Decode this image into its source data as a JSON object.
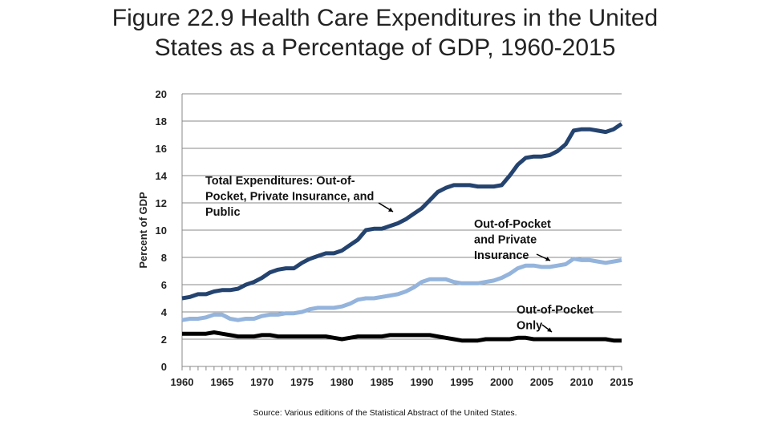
{
  "title_line1": "Figure 22.9 Health Care Expenditures in the United",
  "title_line2": "States as a Percentage of GDP, 1960-2015",
  "source": "Source: Various editions of the Statistical Abstract of the United States.",
  "chart_data": {
    "type": "line",
    "title": "Figure 22.9 Health Care Expenditures in the United States as a Percentage of GDP, 1960-2015",
    "xlabel": "",
    "ylabel": "Percent of GDP",
    "xlim": [
      1960,
      2015
    ],
    "ylim": [
      0,
      20
    ],
    "xticks": [
      1960,
      1965,
      1970,
      1975,
      1980,
      1985,
      1990,
      1995,
      2000,
      2005,
      2010,
      2015
    ],
    "yticks": [
      0,
      2,
      4,
      6,
      8,
      10,
      12,
      14,
      16,
      18,
      20
    ],
    "grid": "horizontal",
    "x": [
      1960,
      1961,
      1962,
      1963,
      1964,
      1965,
      1966,
      1967,
      1968,
      1969,
      1970,
      1971,
      1972,
      1973,
      1974,
      1975,
      1976,
      1977,
      1978,
      1979,
      1980,
      1981,
      1982,
      1983,
      1984,
      1985,
      1986,
      1987,
      1988,
      1989,
      1990,
      1991,
      1992,
      1993,
      1994,
      1995,
      1996,
      1997,
      1998,
      1999,
      2000,
      2001,
      2002,
      2003,
      2004,
      2005,
      2006,
      2007,
      2008,
      2009,
      2010,
      2011,
      2012,
      2013,
      2014,
      2015
    ],
    "series": [
      {
        "name": "Total Expenditures: Out-of-Pocket, Private Insurance, and Public",
        "color": "#24436f",
        "values": [
          5.0,
          5.1,
          5.3,
          5.3,
          5.5,
          5.6,
          5.6,
          5.7,
          6.0,
          6.2,
          6.5,
          6.9,
          7.1,
          7.2,
          7.2,
          7.6,
          7.9,
          8.1,
          8.3,
          8.3,
          8.5,
          8.9,
          9.3,
          10.0,
          10.1,
          10.1,
          10.3,
          10.5,
          10.8,
          11.2,
          11.6,
          12.2,
          12.8,
          13.1,
          13.3,
          13.3,
          13.3,
          13.2,
          13.2,
          13.2,
          13.3,
          14.0,
          14.8,
          15.3,
          15.4,
          15.4,
          15.5,
          15.8,
          16.3,
          17.3,
          17.4,
          17.4,
          17.3,
          17.2,
          17.4,
          17.8
        ]
      },
      {
        "name": "Out-of-Pocket and Private Insurance",
        "color": "#94b4dc",
        "values": [
          3.4,
          3.5,
          3.5,
          3.6,
          3.8,
          3.8,
          3.5,
          3.4,
          3.5,
          3.5,
          3.7,
          3.8,
          3.8,
          3.9,
          3.9,
          4.0,
          4.2,
          4.3,
          4.3,
          4.3,
          4.4,
          4.6,
          4.9,
          5.0,
          5.0,
          5.1,
          5.2,
          5.3,
          5.5,
          5.8,
          6.2,
          6.4,
          6.4,
          6.4,
          6.2,
          6.1,
          6.1,
          6.1,
          6.2,
          6.3,
          6.5,
          6.8,
          7.2,
          7.4,
          7.4,
          7.3,
          7.3,
          7.4,
          7.5,
          7.9,
          7.8,
          7.8,
          7.7,
          7.6,
          7.7,
          7.8
        ]
      },
      {
        "name": "Out-of-Pocket Only",
        "color": "#000000",
        "values": [
          2.4,
          2.4,
          2.4,
          2.4,
          2.5,
          2.4,
          2.3,
          2.2,
          2.2,
          2.2,
          2.3,
          2.3,
          2.2,
          2.2,
          2.2,
          2.2,
          2.2,
          2.2,
          2.2,
          2.1,
          2.0,
          2.1,
          2.2,
          2.2,
          2.2,
          2.2,
          2.3,
          2.3,
          2.3,
          2.3,
          2.3,
          2.3,
          2.2,
          2.1,
          2.0,
          1.9,
          1.9,
          1.9,
          2.0,
          2.0,
          2.0,
          2.0,
          2.1,
          2.1,
          2.0,
          2.0,
          2.0,
          2.0,
          2.0,
          2.0,
          2.0,
          2.0,
          2.0,
          2.0,
          1.9,
          1.9
        ]
      }
    ],
    "annotations": [
      {
        "lines": [
          "Total Expenditures: Out-of-",
          "Pocket, Private Insurance, and",
          "Public"
        ]
      },
      {
        "lines": [
          "Out-of-Pocket",
          "and Private",
          "Insurance"
        ]
      },
      {
        "lines": [
          "Out-of-Pocket",
          "Only"
        ]
      }
    ]
  }
}
